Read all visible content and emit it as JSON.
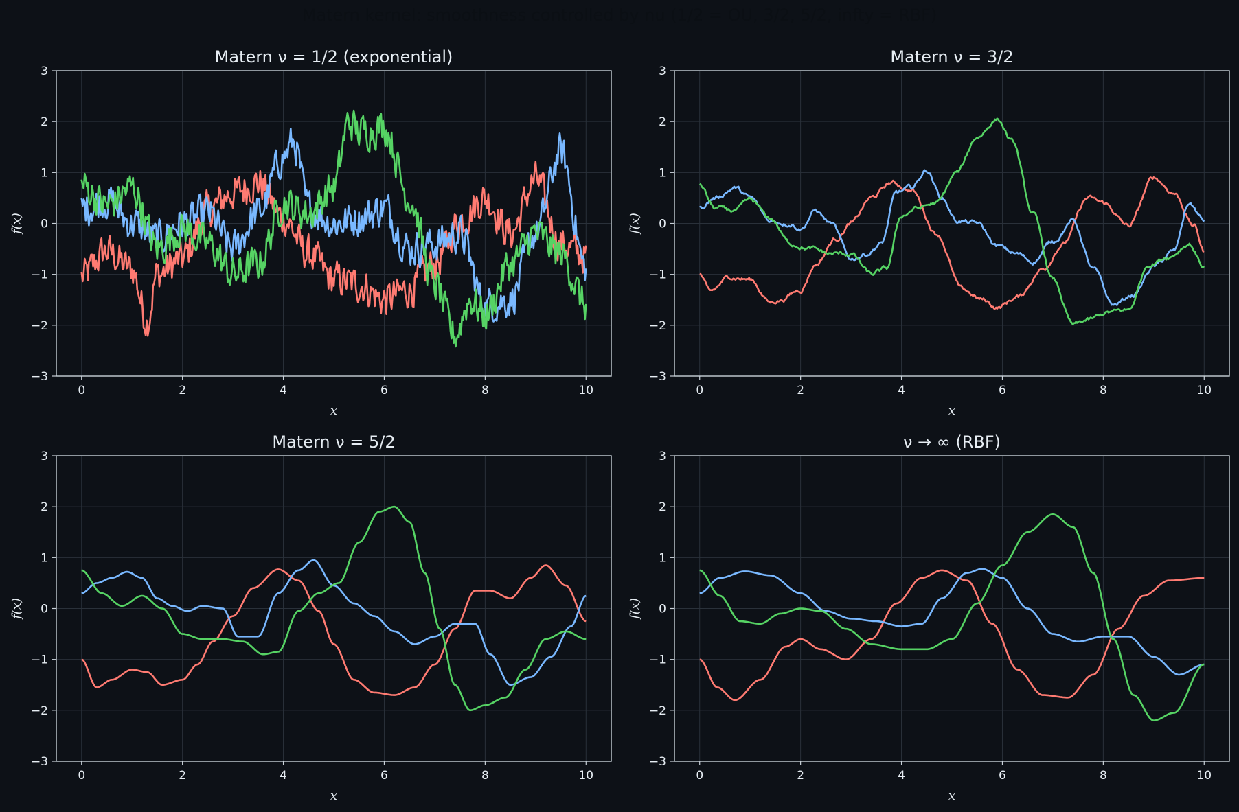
{
  "figure": {
    "suptitle": "Matern kernel: smoothness controlled by nu (1/2 = OU, 3/2, 5/2, infty = RBF)",
    "background": "#0d1117",
    "axes_color": "#c9d1d9",
    "grid_color": "#2a313a",
    "text_color": "#e6edf3"
  },
  "chart_data": [
    {
      "type": "line",
      "title": "Matern ν = 1/2 (exponential)",
      "xlabel": "x",
      "ylabel": "f(x)",
      "xlim": [
        -0.5,
        10.5
      ],
      "ylim": [
        -3,
        3
      ],
      "xticks": [
        0,
        2,
        4,
        6,
        8,
        10
      ],
      "yticks": [
        -3,
        -2,
        -1,
        0,
        1,
        2,
        3
      ],
      "ytick_labels": [
        "−3",
        "−2",
        "−1",
        "0",
        "1",
        "2",
        "3"
      ],
      "grid": true,
      "style": "rough",
      "series": [
        {
          "color": "#ff7b72",
          "x": [
            0,
            0.5,
            1,
            1.3,
            1.5,
            2,
            2.5,
            3,
            3.5,
            4,
            4.5,
            5,
            5.5,
            6,
            6.5,
            7,
            7.5,
            8,
            8.5,
            9,
            9.5,
            10
          ],
          "y": [
            -1.05,
            -0.55,
            -0.9,
            -1.9,
            -1.0,
            -0.7,
            0.25,
            0.6,
            0.8,
            0.1,
            -0.6,
            -1.1,
            -1.2,
            -1.5,
            -1.3,
            -0.8,
            0.05,
            0.5,
            -0.2,
            0.85,
            -0.4,
            -0.65
          ]
        },
        {
          "color": "#79b8ff",
          "x": [
            0,
            0.5,
            1,
            1.5,
            2,
            2.5,
            3,
            3.5,
            4,
            4.2,
            4.5,
            5,
            5.5,
            6,
            6.5,
            7,
            7.5,
            8,
            8.5,
            9,
            9.5,
            10
          ],
          "y": [
            0.3,
            0.45,
            0.0,
            -0.3,
            0.0,
            0.2,
            -0.5,
            0.2,
            1.3,
            1.6,
            0.3,
            0.0,
            0.1,
            0.3,
            -0.5,
            -0.4,
            -0.2,
            -1.6,
            -1.5,
            -0.2,
            1.4,
            -0.9
          ]
        },
        {
          "color": "#56d364",
          "x": [
            0,
            0.5,
            1,
            1.5,
            2,
            2.5,
            3,
            3.5,
            4,
            4.5,
            5,
            5.3,
            5.5,
            6,
            6.5,
            7,
            7.4,
            7.7,
            8,
            8.5,
            9,
            9.5,
            10
          ],
          "y": [
            0.75,
            0.35,
            0.7,
            -0.5,
            -0.1,
            -0.4,
            -1.0,
            -0.8,
            0.4,
            0.2,
            0.7,
            2.0,
            1.8,
            1.9,
            0.5,
            -1.2,
            -2.2,
            -1.5,
            -1.8,
            -0.8,
            -0.2,
            -0.6,
            -1.6
          ]
        }
      ]
    },
    {
      "type": "line",
      "title": "Matern ν = 3/2",
      "xlabel": "x",
      "ylabel": "f(x)",
      "xlim": [
        -0.5,
        10.5
      ],
      "ylim": [
        -3,
        3
      ],
      "xticks": [
        0,
        2,
        4,
        6,
        8,
        10
      ],
      "yticks": [
        -3,
        -2,
        -1,
        0,
        1,
        2,
        3
      ],
      "ytick_labels": [
        "−3",
        "−2",
        "−1",
        "0",
        "1",
        "2",
        "3"
      ],
      "grid": true,
      "style": "wiggly",
      "series": [
        {
          "color": "#ff7b72",
          "x": [
            0,
            0.2,
            0.6,
            1.0,
            1.4,
            1.6,
            2.0,
            2.3,
            2.7,
            3.0,
            3.4,
            3.8,
            4.2,
            4.7,
            5.2,
            5.6,
            5.9,
            6.3,
            6.8,
            7.2,
            7.7,
            8.0,
            8.5,
            9.0,
            9.4,
            9.8,
            10.0
          ],
          "y": [
            -1.0,
            -1.35,
            -1.05,
            -1.1,
            -1.55,
            -1.5,
            -1.3,
            -0.8,
            -0.3,
            0.0,
            0.5,
            0.8,
            0.65,
            -0.2,
            -1.3,
            -1.5,
            -1.65,
            -1.45,
            -0.9,
            -0.4,
            0.5,
            0.4,
            -0.05,
            0.9,
            0.6,
            -0.05,
            -0.55
          ]
        },
        {
          "color": "#79b8ff",
          "x": [
            0,
            0.3,
            0.7,
            1.0,
            1.4,
            1.8,
            2.0,
            2.3,
            2.6,
            3.0,
            3.3,
            3.6,
            3.9,
            4.2,
            4.5,
            4.8,
            5.1,
            5.5,
            5.9,
            6.3,
            6.6,
            7.0,
            7.4,
            7.8,
            8.2,
            8.6,
            9.0,
            9.4,
            9.7,
            10.0
          ],
          "y": [
            0.3,
            0.5,
            0.7,
            0.5,
            0.05,
            0.0,
            -0.1,
            0.25,
            0.0,
            -0.7,
            -0.6,
            -0.4,
            0.6,
            0.7,
            1.05,
            0.5,
            0.05,
            0.0,
            -0.45,
            -0.6,
            -0.75,
            -0.35,
            0.05,
            -0.9,
            -1.6,
            -1.4,
            -0.85,
            -0.55,
            0.4,
            0.05
          ]
        },
        {
          "color": "#56d364",
          "x": [
            0,
            0.3,
            0.7,
            1.0,
            1.4,
            1.8,
            2.2,
            2.6,
            3.0,
            3.4,
            3.7,
            4.0,
            4.3,
            4.7,
            5.1,
            5.5,
            5.9,
            6.2,
            6.6,
            7.0,
            7.4,
            7.7,
            8.1,
            8.5,
            8.9,
            9.3,
            9.7,
            10.0
          ],
          "y": [
            0.75,
            0.3,
            0.25,
            0.45,
            0.1,
            -0.4,
            -0.5,
            -0.6,
            -0.6,
            -1.0,
            -0.9,
            0.15,
            0.3,
            0.4,
            1.0,
            1.7,
            2.05,
            1.6,
            0.2,
            -1.1,
            -2.0,
            -1.9,
            -1.75,
            -1.7,
            -0.8,
            -0.65,
            -0.4,
            -0.85
          ]
        }
      ]
    },
    {
      "type": "line",
      "title": "Matern ν = 5/2",
      "xlabel": "x",
      "ylabel": "f(x)",
      "xlim": [
        -0.5,
        10.5
      ],
      "ylim": [
        -3,
        3
      ],
      "xticks": [
        0,
        2,
        4,
        6,
        8,
        10
      ],
      "yticks": [
        -3,
        -2,
        -1,
        0,
        1,
        2,
        3
      ],
      "ytick_labels": [
        "−3",
        "−2",
        "−1",
        "0",
        "1",
        "2",
        "3"
      ],
      "grid": true,
      "style": "smooth",
      "series": [
        {
          "color": "#ff7b72",
          "x": [
            0,
            0.3,
            0.6,
            1.0,
            1.3,
            1.6,
            2.0,
            2.3,
            2.6,
            3.0,
            3.4,
            3.9,
            4.3,
            4.7,
            5.0,
            5.4,
            5.8,
            6.2,
            6.6,
            7.0,
            7.4,
            7.8,
            8.1,
            8.5,
            8.9,
            9.2,
            9.6,
            10.0
          ],
          "y": [
            -1.0,
            -1.55,
            -1.4,
            -1.2,
            -1.25,
            -1.5,
            -1.4,
            -1.1,
            -0.65,
            -0.15,
            0.4,
            0.77,
            0.55,
            -0.05,
            -0.7,
            -1.4,
            -1.65,
            -1.7,
            -1.55,
            -1.1,
            -0.4,
            0.35,
            0.35,
            0.2,
            0.6,
            0.85,
            0.45,
            -0.25
          ]
        },
        {
          "color": "#79b8ff",
          "x": [
            0,
            0.3,
            0.6,
            0.9,
            1.2,
            1.5,
            1.8,
            2.1,
            2.4,
            2.8,
            3.1,
            3.5,
            3.9,
            4.3,
            4.6,
            5.0,
            5.4,
            5.8,
            6.2,
            6.6,
            7.0,
            7.4,
            7.8,
            8.1,
            8.5,
            8.9,
            9.3,
            9.7,
            10.0
          ],
          "y": [
            0.3,
            0.5,
            0.6,
            0.72,
            0.6,
            0.2,
            0.05,
            -0.05,
            0.05,
            0.0,
            -0.55,
            -0.55,
            0.3,
            0.75,
            0.95,
            0.45,
            0.1,
            -0.15,
            -0.45,
            -0.7,
            -0.55,
            -0.3,
            -0.3,
            -0.9,
            -1.5,
            -1.35,
            -0.95,
            -0.35,
            0.25
          ]
        },
        {
          "color": "#56d364",
          "x": [
            0,
            0.4,
            0.8,
            1.2,
            1.6,
            2.0,
            2.4,
            2.8,
            3.2,
            3.6,
            3.9,
            4.3,
            4.7,
            5.1,
            5.5,
            5.9,
            6.2,
            6.5,
            6.8,
            7.1,
            7.4,
            7.7,
            8.0,
            8.4,
            8.8,
            9.2,
            9.6,
            10.0
          ],
          "y": [
            0.75,
            0.3,
            0.05,
            0.25,
            0.0,
            -0.5,
            -0.6,
            -0.6,
            -0.65,
            -0.9,
            -0.85,
            -0.05,
            0.3,
            0.5,
            1.3,
            1.9,
            2.0,
            1.7,
            0.7,
            -0.4,
            -1.5,
            -2.0,
            -1.9,
            -1.75,
            -1.2,
            -0.6,
            -0.45,
            -0.6
          ]
        }
      ]
    },
    {
      "type": "line",
      "title": "ν → ∞ (RBF)",
      "xlabel": "x",
      "ylabel": "f(x)",
      "xlim": [
        -0.5,
        10.5
      ],
      "ylim": [
        -3,
        3
      ],
      "xticks": [
        0,
        2,
        4,
        6,
        8,
        10
      ],
      "yticks": [
        -3,
        -2,
        -1,
        0,
        1,
        2,
        3
      ],
      "ytick_labels": [
        "−3",
        "−2",
        "−1",
        "0",
        "1",
        "2",
        "3"
      ],
      "grid": true,
      "style": "smooth",
      "series": [
        {
          "color": "#ff7b72",
          "x": [
            0,
            0.35,
            0.7,
            1.2,
            1.7,
            2.0,
            2.4,
            2.9,
            3.4,
            3.9,
            4.4,
            4.8,
            5.3,
            5.8,
            6.3,
            6.8,
            7.3,
            7.8,
            8.3,
            8.8,
            9.3,
            10.0
          ],
          "y": [
            -1.0,
            -1.55,
            -1.8,
            -1.4,
            -0.75,
            -0.6,
            -0.8,
            -1.0,
            -0.6,
            0.1,
            0.6,
            0.75,
            0.55,
            -0.3,
            -1.2,
            -1.7,
            -1.75,
            -1.3,
            -0.4,
            0.25,
            0.55,
            0.6
          ]
        },
        {
          "color": "#79b8ff",
          "x": [
            0,
            0.4,
            0.9,
            1.4,
            2.0,
            2.5,
            3.0,
            3.5,
            4.0,
            4.4,
            4.8,
            5.3,
            5.6,
            6.0,
            6.5,
            7.0,
            7.5,
            8.0,
            8.5,
            9.0,
            9.5,
            10.0
          ],
          "y": [
            0.3,
            0.6,
            0.73,
            0.65,
            0.3,
            -0.05,
            -0.2,
            -0.25,
            -0.35,
            -0.3,
            0.2,
            0.7,
            0.78,
            0.6,
            0.0,
            -0.5,
            -0.65,
            -0.55,
            -0.55,
            -0.95,
            -1.3,
            -1.1
          ]
        },
        {
          "color": "#56d364",
          "x": [
            0,
            0.4,
            0.8,
            1.2,
            1.6,
            2.0,
            2.4,
            2.9,
            3.4,
            4.0,
            4.5,
            5.0,
            5.5,
            6.0,
            6.5,
            7.0,
            7.4,
            7.8,
            8.2,
            8.6,
            9.0,
            9.4,
            10.0
          ],
          "y": [
            0.75,
            0.25,
            -0.25,
            -0.3,
            -0.1,
            0.0,
            -0.05,
            -0.4,
            -0.7,
            -0.8,
            -0.8,
            -0.6,
            0.1,
            0.85,
            1.5,
            1.85,
            1.6,
            0.7,
            -0.6,
            -1.7,
            -2.2,
            -2.05,
            -1.1
          ]
        }
      ]
    }
  ]
}
